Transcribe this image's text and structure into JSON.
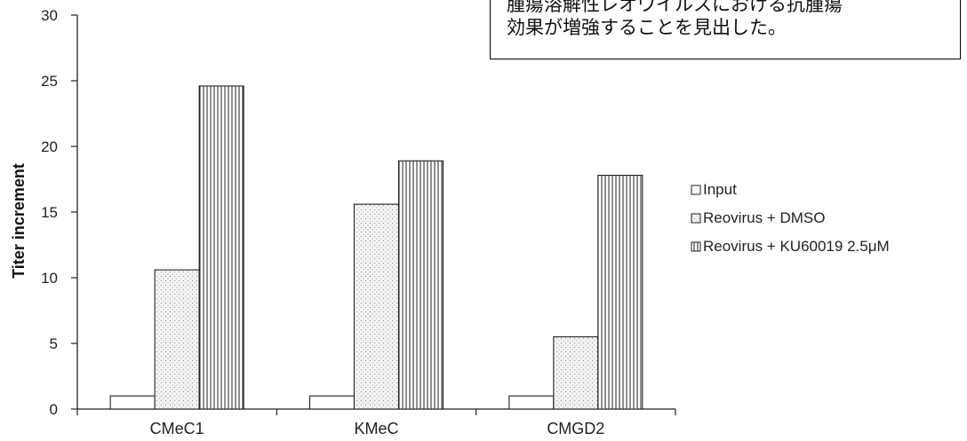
{
  "chart_data": {
    "type": "bar",
    "title": "",
    "xlabel": "",
    "ylabel": "Titer increment",
    "ylim": [
      0,
      30
    ],
    "yticks": [
      0,
      5,
      10,
      15,
      20,
      25,
      30
    ],
    "grid": false,
    "legend_position": "right",
    "categories": [
      "CMeC1",
      "KMeC",
      "CMGD2"
    ],
    "series": [
      {
        "name": "Input",
        "values": [
          1,
          1,
          1
        ],
        "pattern": "blank"
      },
      {
        "name": "Reovirus + DMSO",
        "values": [
          10.6,
          15.6,
          5.5
        ],
        "pattern": "dots"
      },
      {
        "name": "Reovirus + KU60019 2.5μM",
        "values": [
          24.6,
          18.9,
          17.8
        ],
        "pattern": "vertical-lines"
      }
    ]
  },
  "annotation": {
    "lines": [
      "腫瘍溶解性レオウイルスにおける抗腫瘍",
      "効果が増強することを見出した。"
    ]
  }
}
